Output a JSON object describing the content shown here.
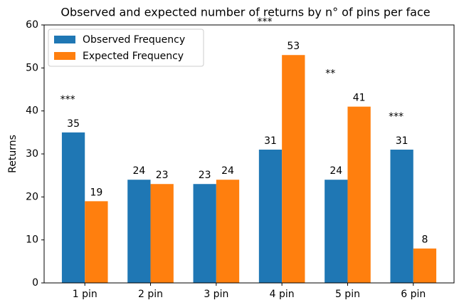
{
  "chart_data": {
    "type": "bar",
    "title": "Observed and expected number of returns by n° of pins per face",
    "y_label": "Returns",
    "categories": [
      "1 pin",
      "2 pin",
      "3 pin",
      "4 pin",
      "5 pin",
      "6 pin"
    ],
    "series": [
      {
        "name": "Observed Frequency",
        "color": "#1f77b4",
        "values": [
          35,
          24,
          23,
          31,
          24,
          31
        ]
      },
      {
        "name": "Expected Frequency",
        "color": "#ff7f0e",
        "values": [
          19,
          23,
          24,
          53,
          41,
          8
        ]
      }
    ],
    "annotations": [
      "***",
      null,
      null,
      "***",
      "**",
      "***"
    ],
    "ylim": [
      0,
      60
    ],
    "yticks": [
      0,
      10,
      20,
      30,
      40,
      50,
      60
    ],
    "grid": false,
    "legend": "upper left"
  }
}
